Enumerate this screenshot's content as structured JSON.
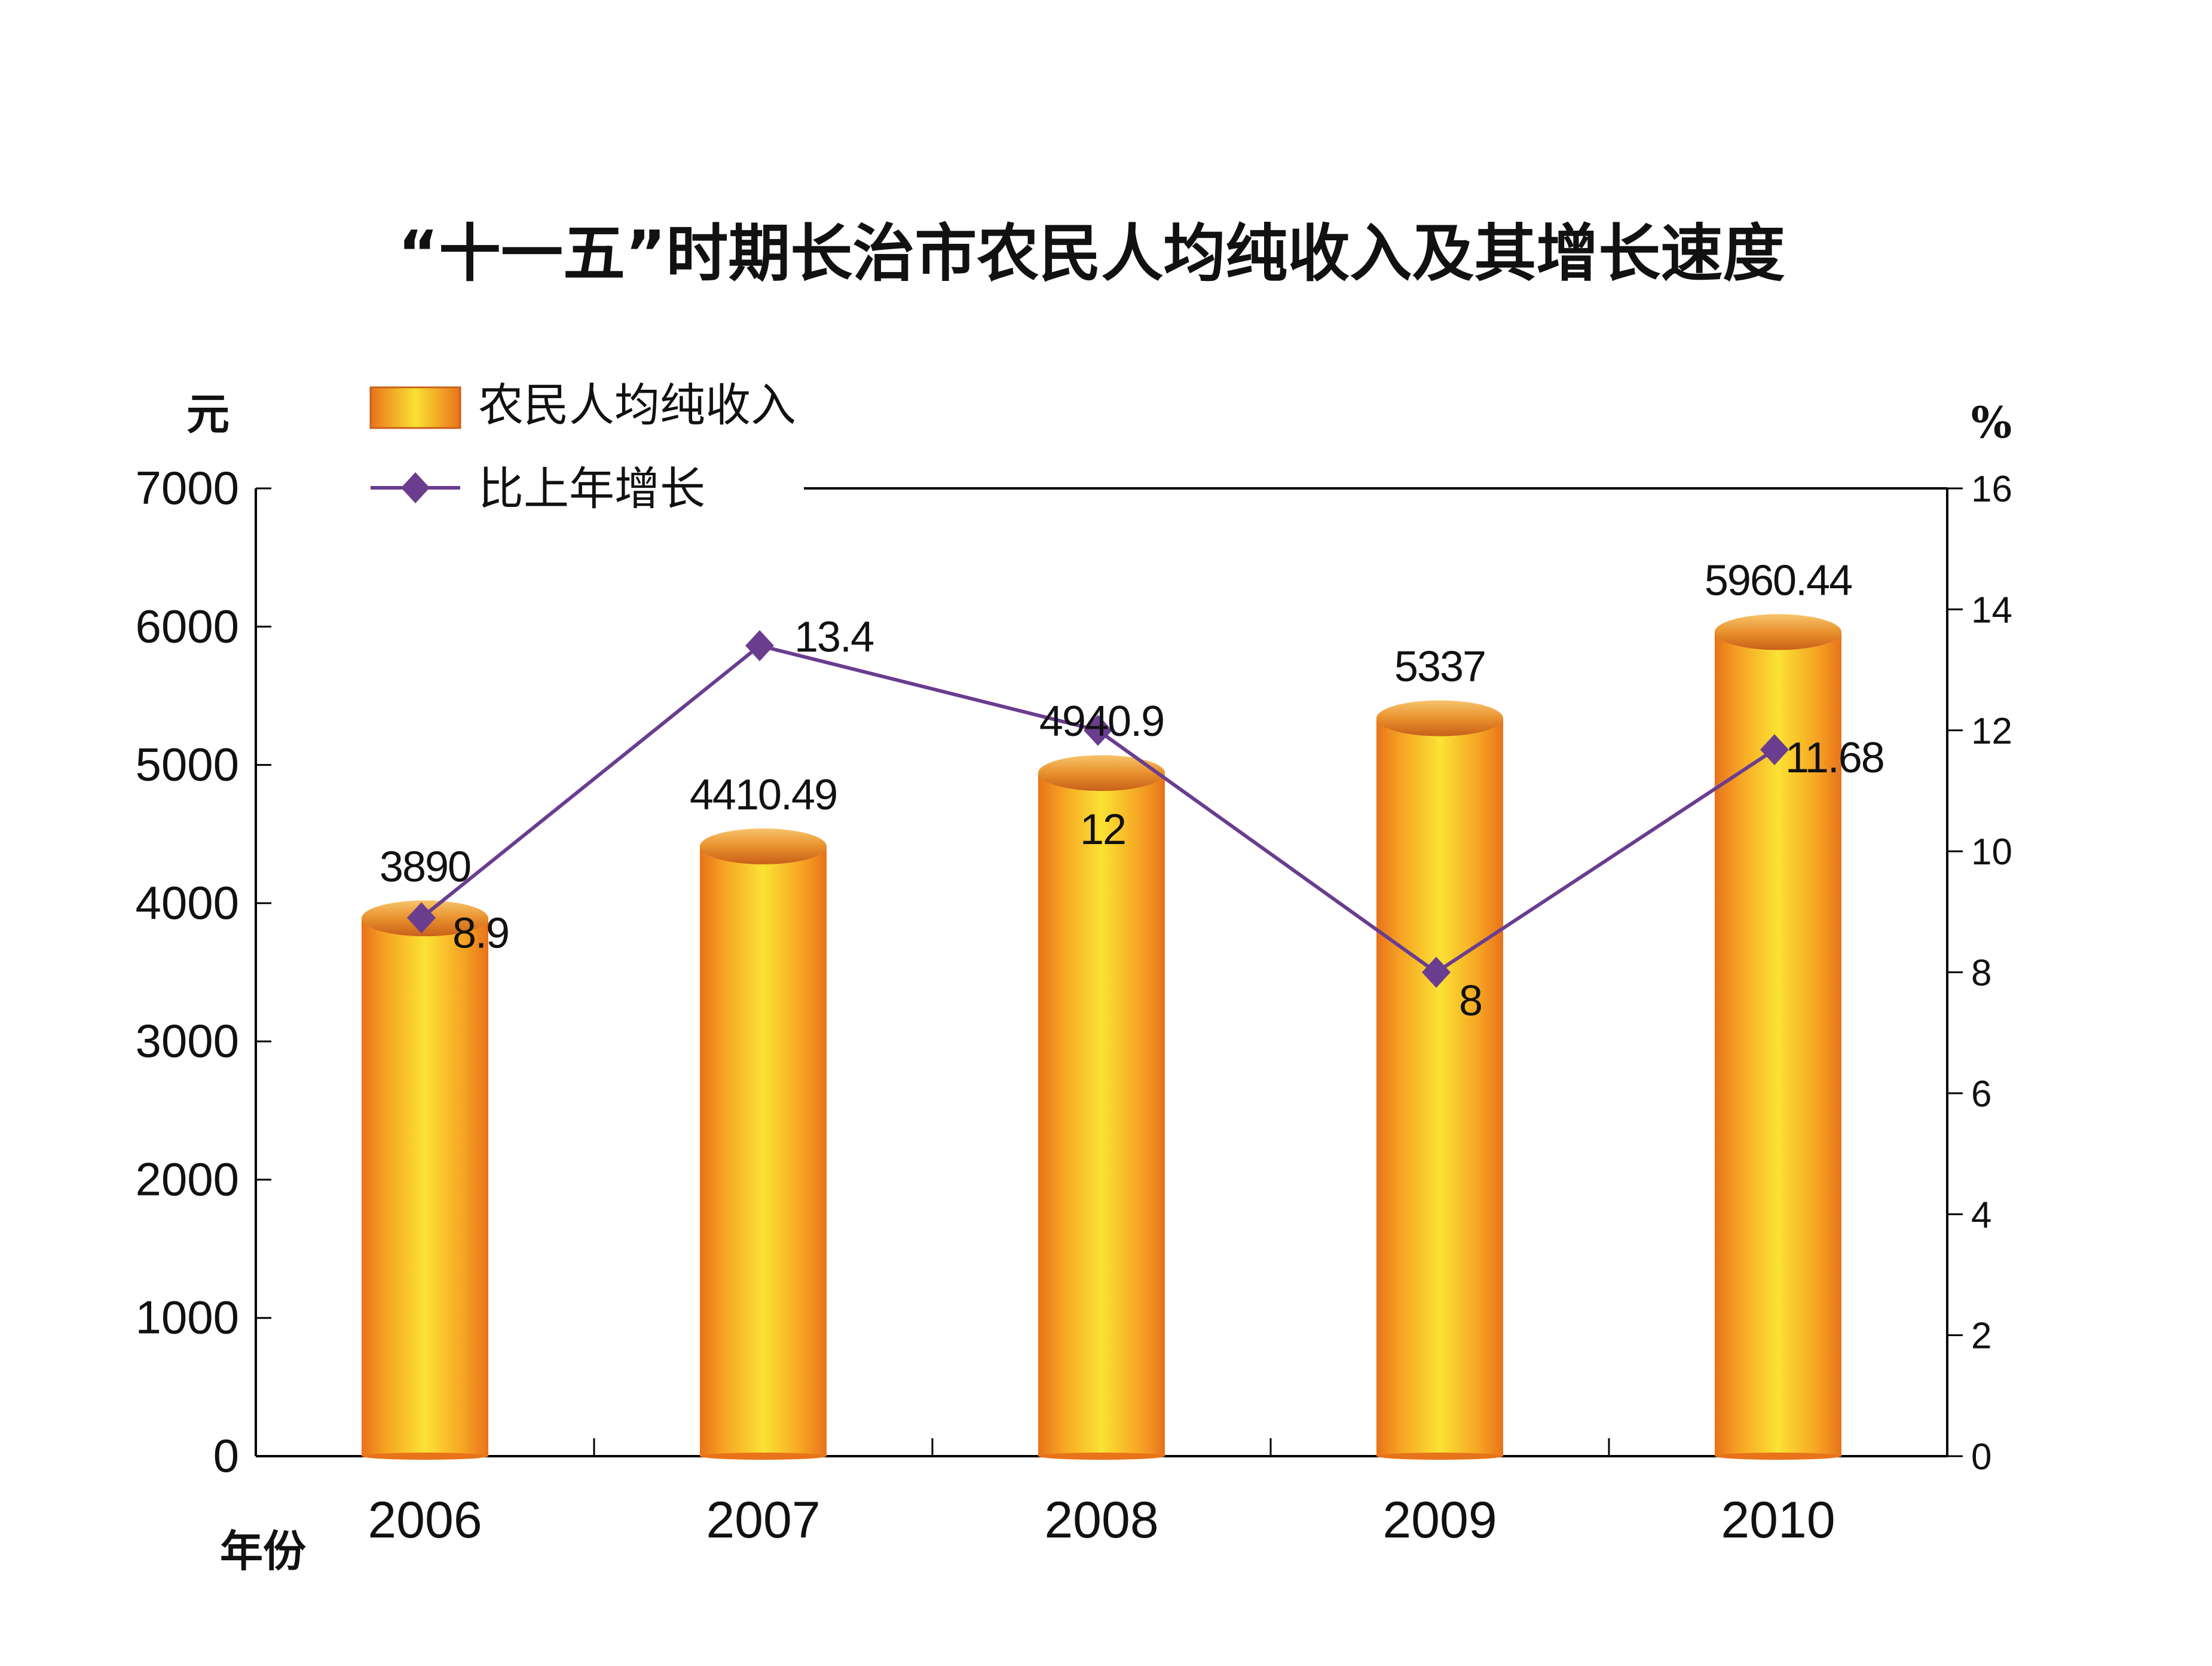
{
  "chart_data": {
    "type": "bar",
    "title": "“十一五”时期长治市农民人均纯收入及其增长速度",
    "xlabel": "年份",
    "ylabel_left": "元",
    "ylabel_right": "%",
    "categories": [
      "2006",
      "2007",
      "2008",
      "2009",
      "2010"
    ],
    "ylim_left": [
      0,
      7000
    ],
    "yticks_left": [
      "0",
      "1000",
      "2000",
      "3000",
      "4000",
      "5000",
      "6000",
      "7000"
    ],
    "ylim_right": [
      0,
      16
    ],
    "yticks_right": [
      "0",
      "2",
      "4",
      "6",
      "8",
      "10",
      "12",
      "14",
      "16"
    ],
    "legend_position": "top-left",
    "grid": false,
    "series": [
      {
        "name": "农民人均纯收入",
        "type": "bar",
        "axis": "left",
        "values": [
          3890,
          4410.49,
          4940.9,
          5337,
          5960.44
        ],
        "labels": [
          "3890",
          "4410.49",
          "4940.9",
          "5337",
          "5960.44"
        ],
        "color": "#F29A1E"
      },
      {
        "name": "比上年增长",
        "type": "line",
        "axis": "right",
        "values": [
          8.9,
          13.4,
          12,
          8,
          11.68
        ],
        "labels": [
          "8.9",
          "13.4",
          "12",
          "8",
          "11.68"
        ],
        "color": "#6A3D8F"
      }
    ]
  }
}
